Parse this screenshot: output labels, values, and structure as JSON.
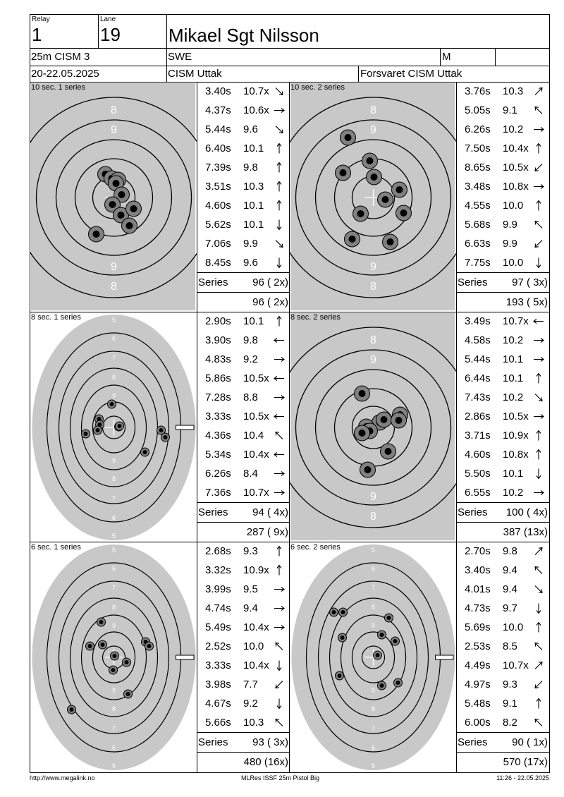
{
  "header": {
    "relay_label": "Relay",
    "relay_value": "1",
    "lane_label": "Lane",
    "lane_value": "19",
    "shooter_name": "Mikael Sgt Nilsson",
    "event": "25m CISM 3",
    "nation": "SWE",
    "gender": "M",
    "date": "20-22.05.2025",
    "competition": "CISM Uttak",
    "organizer": "Forsvaret CISM Uttak"
  },
  "series_label": "Series",
  "panels": [
    {
      "title": "10 sec. 1 series",
      "target": "precision",
      "shots": [
        {
          "time": "3.40s",
          "score": "10.7x",
          "dir": "SE"
        },
        {
          "time": "4.37s",
          "score": "10.6x",
          "dir": "E"
        },
        {
          "time": "5.44s",
          "score": "9.6",
          "dir": "SE"
        },
        {
          "time": "6.40s",
          "score": "10.1",
          "dir": "N"
        },
        {
          "time": "7.39s",
          "score": "9.8",
          "dir": "N"
        },
        {
          "time": "3.51s",
          "score": "10.3",
          "dir": "N"
        },
        {
          "time": "4.60s",
          "score": "10.1",
          "dir": "N"
        },
        {
          "time": "5.62s",
          "score": "10.1",
          "dir": "S"
        },
        {
          "time": "7.06s",
          "score": "9.9",
          "dir": "SE"
        },
        {
          "time": "8.45s",
          "score": "9.6",
          "dir": "S"
        }
      ],
      "series_total": "96 ( 2x)",
      "cumulative": "96 ( 2x)",
      "hits": [
        [
          -12,
          -33
        ],
        [
          -3,
          -27
        ],
        [
          6,
          -25
        ],
        [
          3,
          -20
        ],
        [
          11,
          -4
        ],
        [
          -2,
          10
        ],
        [
          10,
          25
        ],
        [
          28,
          16
        ],
        [
          22,
          40
        ],
        [
          -25,
          52
        ]
      ]
    },
    {
      "title": "10 sec. 2 series",
      "target": "precision",
      "shots": [
        {
          "time": "3.76s",
          "score": "10.3",
          "dir": "NE"
        },
        {
          "time": "5.05s",
          "score": "9.1",
          "dir": "NW"
        },
        {
          "time": "6.26s",
          "score": "10.2",
          "dir": "E"
        },
        {
          "time": "7.50s",
          "score": "10.4x",
          "dir": "N"
        },
        {
          "time": "8.65s",
          "score": "10.5x",
          "dir": "SW"
        },
        {
          "time": "3.48s",
          "score": "10.8x",
          "dir": "E"
        },
        {
          "time": "4.55s",
          "score": "10.0",
          "dir": "N"
        },
        {
          "time": "5.68s",
          "score": "9.9",
          "dir": "NW"
        },
        {
          "time": "6.63s",
          "score": "9.9",
          "dir": "SW"
        },
        {
          "time": "7.75s",
          "score": "10.0",
          "dir": "S"
        }
      ],
      "series_total": "97 ( 3x)",
      "cumulative": "193 ( 5x)",
      "hits": [
        [
          -36,
          -85
        ],
        [
          -5,
          -52
        ],
        [
          -43,
          -35
        ],
        [
          1,
          -29
        ],
        [
          37,
          -11
        ],
        [
          17,
          3
        ],
        [
          -18,
          23
        ],
        [
          43,
          22
        ],
        [
          -30,
          59
        ],
        [
          24,
          63
        ]
      ]
    },
    {
      "title": "8 sec. 1 series",
      "target": "rapid",
      "shots": [
        {
          "time": "2.90s",
          "score": "10.1",
          "dir": "N"
        },
        {
          "time": "3.90s",
          "score": "9.8",
          "dir": "W"
        },
        {
          "time": "4.83s",
          "score": "9.2",
          "dir": "E"
        },
        {
          "time": "5.86s",
          "score": "10.5x",
          "dir": "W"
        },
        {
          "time": "7.28s",
          "score": "8.8",
          "dir": "E"
        },
        {
          "time": "3.33s",
          "score": "10.5x",
          "dir": "W"
        },
        {
          "time": "4.36s",
          "score": "10.4",
          "dir": "NW"
        },
        {
          "time": "5.34s",
          "score": "10.4x",
          "dir": "W"
        },
        {
          "time": "6.26s",
          "score": "8.4",
          "dir": "E"
        },
        {
          "time": "7.36s",
          "score": "10.7x",
          "dir": "E"
        }
      ],
      "series_total": "94 ( 4x)",
      "cumulative": "287 ( 9x)",
      "rings": [
        "5",
        "6",
        "7",
        "8",
        "9",
        "10"
      ],
      "hits": [
        [
          -3,
          -33
        ],
        [
          -21,
          -12
        ],
        [
          -20,
          -4
        ],
        [
          -23,
          4
        ],
        [
          -40,
          9
        ],
        [
          7,
          -1
        ],
        [
          67,
          4
        ],
        [
          73,
          14
        ],
        [
          44,
          35
        ],
        [
          8,
          -2
        ]
      ]
    },
    {
      "title": "8 sec. 2 series",
      "target": "precision",
      "shots": [
        {
          "time": "3.49s",
          "score": "10.7x",
          "dir": "W"
        },
        {
          "time": "4.58s",
          "score": "10.2",
          "dir": "E"
        },
        {
          "time": "5.44s",
          "score": "10.1",
          "dir": "E"
        },
        {
          "time": "6.44s",
          "score": "10.1",
          "dir": "N"
        },
        {
          "time": "7.43s",
          "score": "10.2",
          "dir": "SE"
        },
        {
          "time": "2.86s",
          "score": "10.5x",
          "dir": "E"
        },
        {
          "time": "3.71s",
          "score": "10.9x",
          "dir": "N"
        },
        {
          "time": "4.60s",
          "score": "10.8x",
          "dir": "N"
        },
        {
          "time": "5.50s",
          "score": "10.1",
          "dir": "S"
        },
        {
          "time": "6.55s",
          "score": "10.2",
          "dir": "E"
        }
      ],
      "series_total": "100 ( 4x)",
      "cumulative": "387 (13x)",
      "hits": [
        [
          -16,
          -48
        ],
        [
          9,
          -7
        ],
        [
          -10,
          -1
        ],
        [
          -5,
          5
        ],
        [
          -16,
          8
        ],
        [
          15,
          -11
        ],
        [
          38,
          -18
        ],
        [
          36,
          -10
        ],
        [
          21,
          34
        ],
        [
          -8,
          60
        ]
      ]
    },
    {
      "title": "6 sec. 1 series",
      "target": "rapid",
      "shots": [
        {
          "time": "2.68s",
          "score": "9.3",
          "dir": "N"
        },
        {
          "time": "3.32s",
          "score": "10.9x",
          "dir": "N"
        },
        {
          "time": "3.99s",
          "score": "9.5",
          "dir": "E"
        },
        {
          "time": "4.74s",
          "score": "9.4",
          "dir": "E"
        },
        {
          "time": "5.49s",
          "score": "10.4x",
          "dir": "E"
        },
        {
          "time": "2.52s",
          "score": "10.0",
          "dir": "NW"
        },
        {
          "time": "3.33s",
          "score": "10.4x",
          "dir": "S"
        },
        {
          "time": "3.98s",
          "score": "7.7",
          "dir": "SW"
        },
        {
          "time": "4.67s",
          "score": "9.2",
          "dir": "S"
        },
        {
          "time": "5.66s",
          "score": "10.3",
          "dir": "NW"
        }
      ],
      "series_total": "93 ( 3x)",
      "cumulative": "480 (16x)",
      "rings": [
        "5",
        "6",
        "7",
        "8",
        "9",
        "10"
      ],
      "hits": [
        [
          -18,
          -50
        ],
        [
          -16,
          -18
        ],
        [
          -34,
          -16
        ],
        [
          45,
          -22
        ],
        [
          50,
          -16
        ],
        [
          18,
          7
        ],
        [
          -1,
          18
        ],
        [
          1,
          -2
        ],
        [
          20,
          52
        ],
        [
          -60,
          74
        ]
      ]
    },
    {
      "title": "6 sec. 2 series",
      "target": "rapid",
      "shots": [
        {
          "time": "2.70s",
          "score": "9.8",
          "dir": "NE"
        },
        {
          "time": "3.40s",
          "score": "9.4",
          "dir": "NW"
        },
        {
          "time": "4.01s",
          "score": "9.4",
          "dir": "SE"
        },
        {
          "time": "4.73s",
          "score": "9.7",
          "dir": "S"
        },
        {
          "time": "5.69s",
          "score": "10.0",
          "dir": "N"
        },
        {
          "time": "2.53s",
          "score": "8.5",
          "dir": "NW"
        },
        {
          "time": "4.49s",
          "score": "10.7x",
          "dir": "NE"
        },
        {
          "time": "4.97s",
          "score": "9.3",
          "dir": "SW"
        },
        {
          "time": "5.48s",
          "score": "9.1",
          "dir": "N"
        },
        {
          "time": "6.00s",
          "score": "8.2",
          "dir": "NW"
        }
      ],
      "series_total": "90 ( 1x)",
      "cumulative": "570 (17x)",
      "rings": [
        "5",
        "6",
        "7",
        "8",
        "9",
        "10"
      ],
      "hits": [
        [
          -56,
          -64
        ],
        [
          -43,
          -64
        ],
        [
          22,
          -56
        ],
        [
          -44,
          -28
        ],
        [
          12,
          -32
        ],
        [
          31,
          -23
        ],
        [
          6,
          -3
        ],
        [
          -48,
          26
        ],
        [
          12,
          40
        ],
        [
          35,
          36
        ]
      ]
    }
  ],
  "footer": {
    "left": "http://www.megalink.no",
    "center": "MLRes ISSF 25m Pistol Big",
    "right": "11:26 - 22.05.2025"
  },
  "colors": {
    "target_gray": "#c8c8c8",
    "hit_outer": "#808080",
    "hit_inner": "#000000",
    "ring_line": "#000000"
  }
}
